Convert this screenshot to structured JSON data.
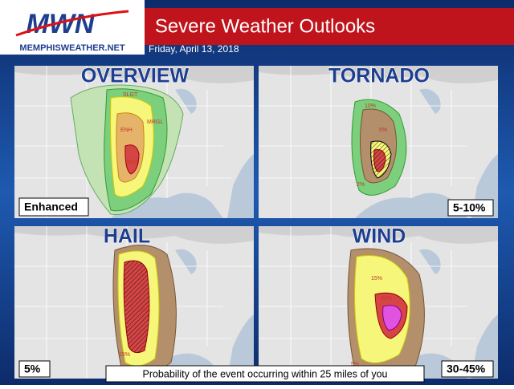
{
  "header": {
    "logo": "MWN",
    "site": "MEMPHISWEATHER.NET",
    "title": "Severe Weather Outlooks",
    "date": "Friday, April 13, 2018"
  },
  "panels": [
    {
      "title": "OVERVIEW",
      "label": "Enhanced",
      "map_labels": [
        "SLGT",
        "ENH",
        "MRGL",
        "MDT"
      ]
    },
    {
      "title": "TORNADO",
      "label": "5-10%",
      "map_labels": [
        "10%",
        "5%",
        "2%"
      ]
    },
    {
      "title": "HAIL",
      "label": "5%",
      "map_labels": [
        "30%",
        "15%"
      ]
    },
    {
      "title": "WIND",
      "label": "30-45%",
      "map_labels": [
        "15%",
        "30%",
        "5%"
      ]
    }
  ],
  "footer": "Probability of the event occurring within 25 miles of you"
}
